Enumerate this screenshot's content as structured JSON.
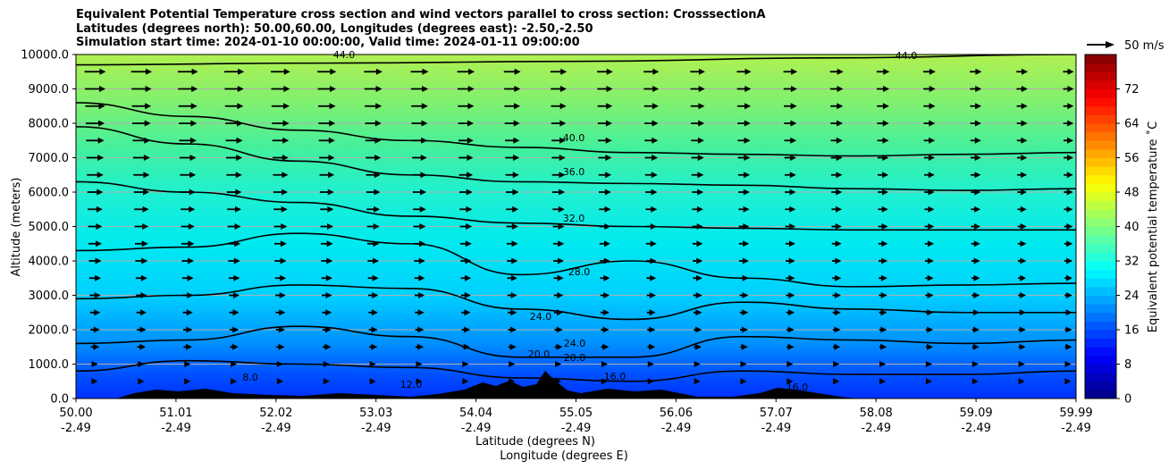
{
  "chart_data": {
    "type": "contour",
    "title_lines": [
      "Equivalent Potential Temperature cross section and wind vectors parallel to cross section: CrosssectionA",
      "Latitudes (degrees north): 50.00,60.00, Longitudes (degrees east): -2.50,-2.50",
      "Simulation start time: 2024-01-10 00:00:00, Valid time: 2024-01-11 09:00:00"
    ],
    "xlabel_line1": "Latitude (degrees N)",
    "xlabel_line2": "Longitude (degrees E)",
    "ylabel": "Altitude (meters)",
    "x_ticks": [
      {
        "lat": "50.00",
        "lon": "-2.49"
      },
      {
        "lat": "51.01",
        "lon": "-2.49"
      },
      {
        "lat": "52.02",
        "lon": "-2.49"
      },
      {
        "lat": "53.03",
        "lon": "-2.49"
      },
      {
        "lat": "54.04",
        "lon": "-2.49"
      },
      {
        "lat": "55.05",
        "lon": "-2.49"
      },
      {
        "lat": "56.06",
        "lon": "-2.49"
      },
      {
        "lat": "57.07",
        "lon": "-2.49"
      },
      {
        "lat": "58.08",
        "lon": "-2.49"
      },
      {
        "lat": "59.09",
        "lon": "-2.49"
      },
      {
        "lat": "59.99",
        "lon": "-2.49"
      }
    ],
    "y_ticks": [
      "0.0",
      "1000.0",
      "2000.0",
      "3000.0",
      "4000.0",
      "5000.0",
      "6000.0",
      "7000.0",
      "8000.0",
      "9000.0",
      "10000.0"
    ],
    "ylim": [
      0,
      10000
    ],
    "grid": "horizontal",
    "colorbar": {
      "label": "Equivalent potential temperature ˚C",
      "ticks": [
        "0",
        "8",
        "16",
        "24",
        "32",
        "40",
        "48",
        "56",
        "64",
        "72"
      ],
      "range": [
        0,
        80
      ]
    },
    "wind_key_label": "50 m/s",
    "contour_labels": [
      "44.0",
      "40.0",
      "36.0",
      "32.0",
      "28.0",
      "24.0",
      "24.0",
      "20.0",
      "20.0",
      "16.0",
      "12.0",
      "8.0",
      "44.0",
      "16.0"
    ],
    "contour_levels": [
      {
        "level": 44,
        "y": [
          9700,
          9750,
          9800,
          9900,
          10000
        ]
      },
      {
        "level": 40,
        "y": [
          8600,
          8200,
          7800,
          7500,
          7300,
          7150,
          7100,
          7050,
          7100,
          7150
        ]
      },
      {
        "level": 36,
        "y": [
          7900,
          7400,
          6900,
          6500,
          6300,
          6250,
          6200,
          6100,
          6050,
          6100
        ]
      },
      {
        "level": 32,
        "y": [
          6300,
          6000,
          5700,
          5300,
          5100,
          5000,
          4950,
          4900,
          4900,
          4900
        ]
      },
      {
        "level": 28,
        "y": [
          4300,
          4400,
          4800,
          4500,
          3600,
          4000,
          3500,
          3250,
          3300,
          3350
        ]
      },
      {
        "level": 24,
        "y": [
          2900,
          3000,
          3300,
          3200,
          2600,
          2300,
          2800,
          2600,
          2500,
          2500
        ]
      },
      {
        "level": 20,
        "y": [
          1600,
          1700,
          2100,
          1800,
          1200,
          1200,
          1800,
          1700,
          1600,
          1700
        ]
      },
      {
        "level": 16,
        "y": [
          800,
          1100,
          1000,
          900,
          600,
          500,
          800,
          700,
          700,
          800
        ]
      }
    ]
  }
}
